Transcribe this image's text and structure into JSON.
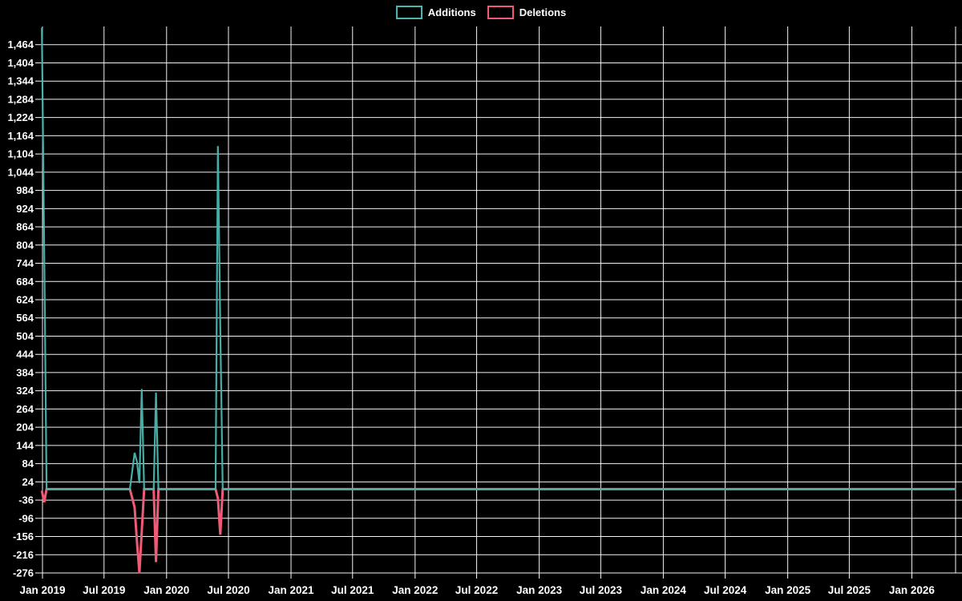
{
  "legend": {
    "additions": "Additions",
    "deletions": "Deletions"
  },
  "colors": {
    "background": "#000000",
    "grid": "#ffffff",
    "text": "#ffffff",
    "additions": "#4ab6af",
    "deletions": "#ef5b77"
  },
  "chart_data": {
    "type": "line",
    "title": "",
    "legend_position": "top-center",
    "grid": true,
    "baseline": 0,
    "weekly_zero_baseline": true,
    "series_start": "2018-12-30",
    "series_end": "2026-05-10",
    "y_axis": {
      "min": -276,
      "max": 1524,
      "tick_interval": 60,
      "ticks": [
        [
          -276,
          "-276"
        ],
        [
          -216,
          "-216"
        ],
        [
          -156,
          "-156"
        ],
        [
          -96,
          "-96"
        ],
        [
          -36,
          "-36"
        ],
        [
          24,
          "24"
        ],
        [
          84,
          "84"
        ],
        [
          144,
          "144"
        ],
        [
          204,
          "204"
        ],
        [
          264,
          "264"
        ],
        [
          324,
          "324"
        ],
        [
          384,
          "384"
        ],
        [
          444,
          "444"
        ],
        [
          504,
          "504"
        ],
        [
          564,
          "564"
        ],
        [
          624,
          "624"
        ],
        [
          684,
          "684"
        ],
        [
          744,
          "744"
        ],
        [
          804,
          "804"
        ],
        [
          864,
          "864"
        ],
        [
          924,
          "924"
        ],
        [
          984,
          "984"
        ],
        [
          1044,
          "1,044"
        ],
        [
          1104,
          "1,104"
        ],
        [
          1164,
          "1,164"
        ],
        [
          1224,
          "1,224"
        ],
        [
          1284,
          "1,284"
        ],
        [
          1344,
          "1,344"
        ],
        [
          1404,
          "1,404"
        ],
        [
          1464,
          "1,464"
        ]
      ]
    },
    "x_axis": {
      "ticks": [
        [
          "2019-01-01",
          "Jan 2019"
        ],
        [
          "2019-07-01",
          "Jul 2019"
        ],
        [
          "2020-01-01",
          "Jan 2020"
        ],
        [
          "2020-07-01",
          "Jul 2020"
        ],
        [
          "2021-01-01",
          "Jan 2021"
        ],
        [
          "2021-07-01",
          "Jul 2021"
        ],
        [
          "2022-01-01",
          "Jan 2022"
        ],
        [
          "2022-07-01",
          "Jul 2022"
        ],
        [
          "2023-01-01",
          "Jan 2023"
        ],
        [
          "2023-07-01",
          "Jul 2023"
        ],
        [
          "2024-01-01",
          "Jan 2024"
        ],
        [
          "2024-07-01",
          "Jul 2024"
        ],
        [
          "2025-01-01",
          "Jan 2025"
        ],
        [
          "2025-07-01",
          "Jul 2025"
        ],
        [
          "2026-01-01",
          "Jan 2026"
        ]
      ]
    },
    "series": [
      {
        "name": "Additions",
        "color": "#4ab6af",
        "events": [
          [
            "2018-12-30",
            1520
          ],
          [
            "2019-01-06",
            800
          ],
          [
            "2019-09-22",
            60
          ],
          [
            "2019-09-29",
            120
          ],
          [
            "2019-10-06",
            90
          ],
          [
            "2019-10-13",
            20
          ],
          [
            "2019-10-20",
            330
          ],
          [
            "2019-12-01",
            318
          ],
          [
            "2020-05-31",
            1130
          ],
          [
            "2020-06-07",
            530
          ]
        ]
      },
      {
        "name": "Deletions",
        "color": "#ef5b77",
        "events": [
          [
            "2018-12-30",
            -5
          ],
          [
            "2019-01-06",
            -43
          ],
          [
            "2019-09-22",
            -30
          ],
          [
            "2019-09-29",
            -60
          ],
          [
            "2019-10-06",
            -175
          ],
          [
            "2019-10-13",
            -276
          ],
          [
            "2019-10-20",
            -140
          ],
          [
            "2019-12-01",
            -240
          ],
          [
            "2020-05-31",
            -30
          ],
          [
            "2020-06-07",
            -150
          ]
        ]
      }
    ]
  }
}
